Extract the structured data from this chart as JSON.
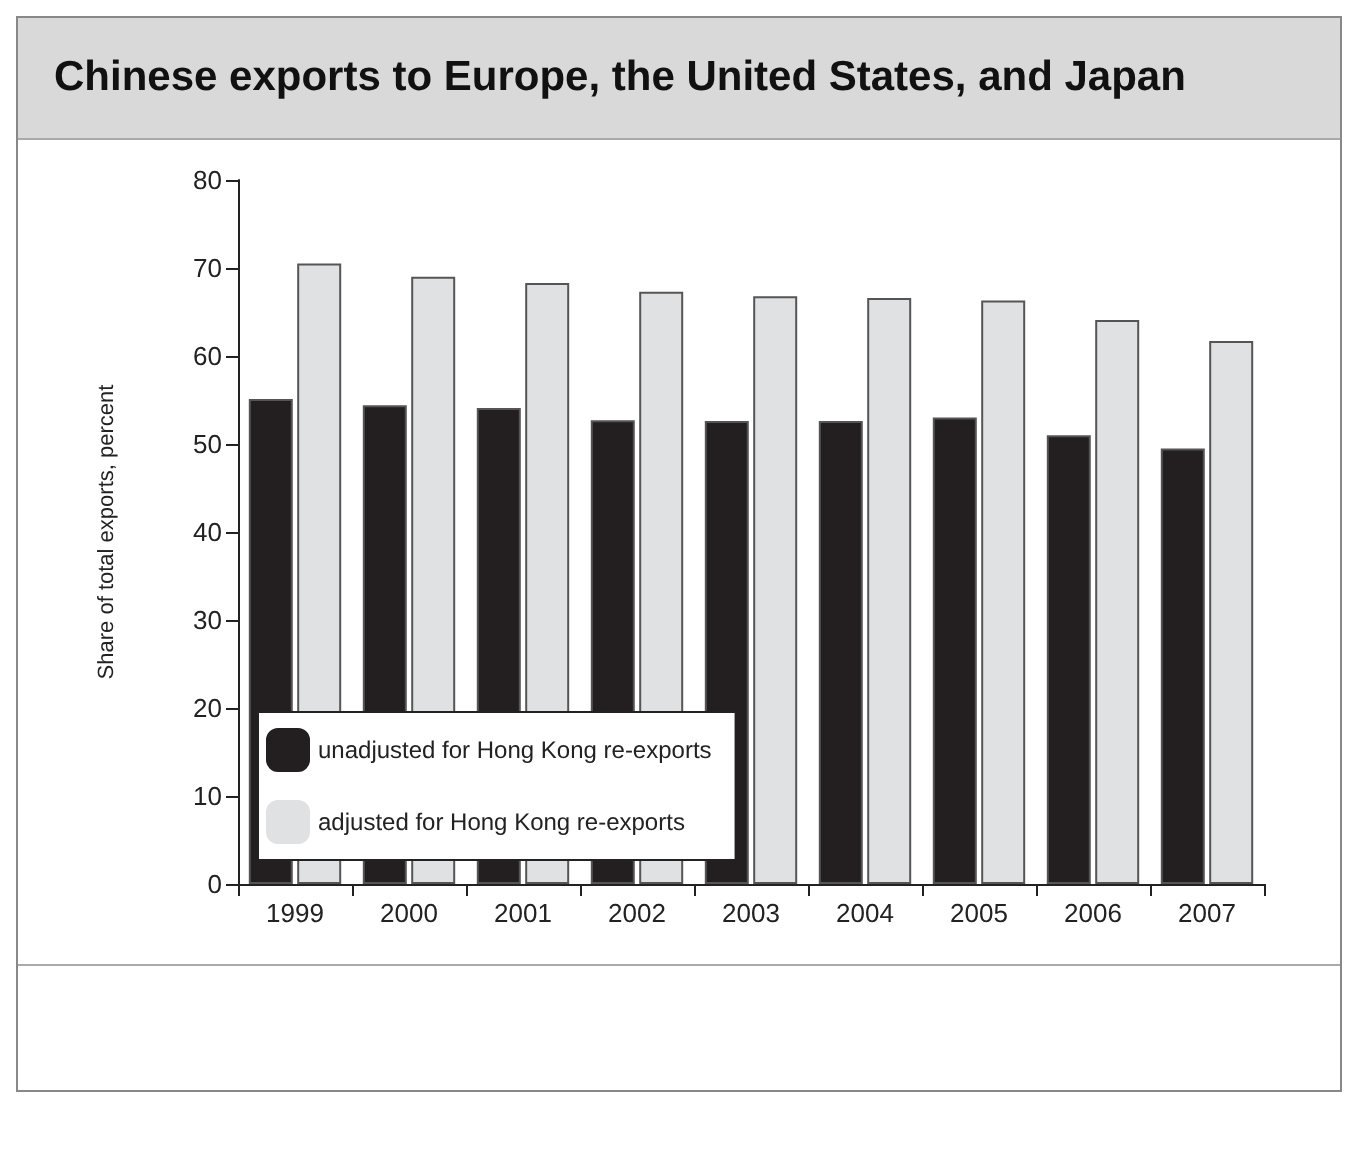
{
  "chart_data": {
    "type": "bar",
    "title": "Chinese exports to Europe, the United States, and Japan",
    "ylabel": "Share of total exports, percent",
    "categories": [
      "1999",
      "2000",
      "2001",
      "2002",
      "2003",
      "2004",
      "2005",
      "2006",
      "2007"
    ],
    "series": [
      {
        "name": "unadjusted for Hong Kong re-exports",
        "color": "#231f20",
        "values": [
          55.1,
          54.4,
          54.1,
          52.7,
          52.6,
          52.6,
          53.0,
          51.0,
          49.5
        ]
      },
      {
        "name": "adjusted for Hong Kong re-exports",
        "color": "#e0e1e3",
        "values": [
          70.5,
          69.0,
          68.3,
          67.3,
          66.8,
          66.6,
          66.3,
          64.1,
          61.7
        ]
      }
    ],
    "ylim": [
      0,
      80
    ],
    "yticks": [
      0,
      10,
      20,
      30,
      40,
      50,
      60,
      70,
      80
    ],
    "grid": false,
    "legend": "bottom left"
  }
}
